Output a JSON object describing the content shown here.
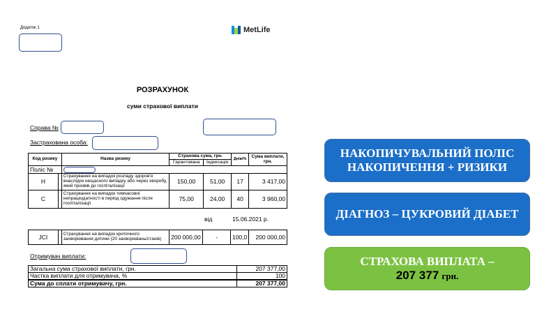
{
  "header": {
    "appendix": "Додаток 1",
    "logo_text": "MetLife"
  },
  "title": "РОЗРАХУНОК",
  "subtitle": "суми страхової виплати",
  "case_label": "Справа №",
  "insured_label": "Застрахована особа:",
  "table": {
    "headers": {
      "code": "Код ризику",
      "name": "Назва ризику",
      "sum_insured": "Страхова сума, грн.",
      "guaranteed": "Гарантована",
      "indexation": "Індексація",
      "days": "Днів/%",
      "payout": "Сума виплати, грн."
    },
    "policy_label": "Поліс №",
    "rows": [
      {
        "code": "Н",
        "name": "Страхування на випадок розладу здоров'я внаслідок нещасного випадку або через хворобу, який призвів до госпіталізації",
        "guaranteed": "150,00",
        "indexation": "51,00",
        "days": "17",
        "payout": "3 417,00"
      },
      {
        "code": "С",
        "name": "Страхування на випадок тимчасової непрацездатності в період одужання після госпіталізації",
        "guaranteed": "75,00",
        "indexation": "24,00",
        "days": "40",
        "payout": "3 960,00"
      }
    ]
  },
  "date_label": "від",
  "date": "15.06.2021 р.",
  "jci": {
    "code": "JCI",
    "name": "Страхування на випадок критичного захворювання дитини (20 захворювань/станів)",
    "guaranteed": "200 000,00",
    "indexation": "-",
    "days": "100,0",
    "payout": "200 000,00"
  },
  "recipient_label": "Отримувач виплати:",
  "totals": [
    {
      "label": "Загальна сума страхової виплати, грн.",
      "value": "207 377,00"
    },
    {
      "label": "Частка виплати для отримувача, %",
      "value": "100"
    },
    {
      "label": "Сума до сплати отримувачу, грн.",
      "value": "207 377,00"
    }
  ],
  "callouts": [
    {
      "line1": "НАКОПИЧУВАЛЬНИЙ ПОЛІС",
      "line2": "НАКОПИЧЕННЯ + РИЗИКИ",
      "color": "#1b6fc8"
    },
    {
      "line1": "ДІАГНОЗ – ЦУКРОВИЙ ДІАБЕТ",
      "color": "#1b6fc8"
    },
    {
      "line1": "СТРАХОВА ВИПЛАТА –",
      "amount": "207 377",
      "unit": "грн.",
      "color": "#7cc242"
    }
  ]
}
